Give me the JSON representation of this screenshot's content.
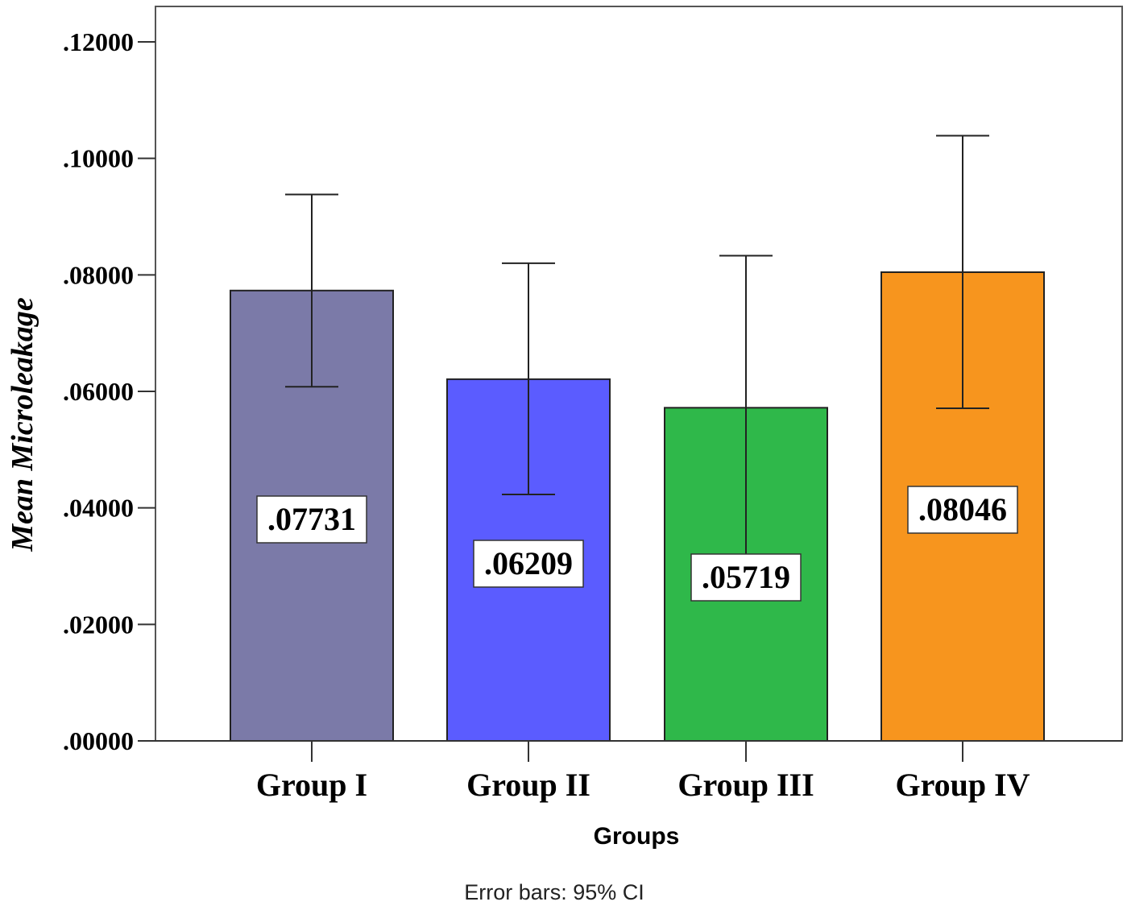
{
  "chart_data": {
    "type": "bar",
    "categories": [
      "Group I",
      "Group II",
      "Group III",
      "Group IV"
    ],
    "values": [
      0.07731,
      0.06209,
      0.05719,
      0.08046
    ],
    "data_labels": [
      ".07731",
      ".06209",
      ".05719",
      ".08046"
    ],
    "error_bars": {
      "lower": [
        0.0608,
        0.0423,
        0.0313,
        0.0571
      ],
      "upper": [
        0.0938,
        0.082,
        0.0833,
        0.1039
      ]
    },
    "colors": [
      "#7b7aa8",
      "#5b5cff",
      "#2fb84a",
      "#f7951e"
    ],
    "xlabel": "Groups",
    "ylabel": "Mean Microleakage",
    "ylim": [
      0,
      0.12
    ],
    "yticks": [
      ".00000",
      ".02000",
      ".04000",
      ".06000",
      ".08000",
      ".10000",
      ".12000"
    ],
    "note": "Error bars: 95% CI",
    "grid": false
  }
}
